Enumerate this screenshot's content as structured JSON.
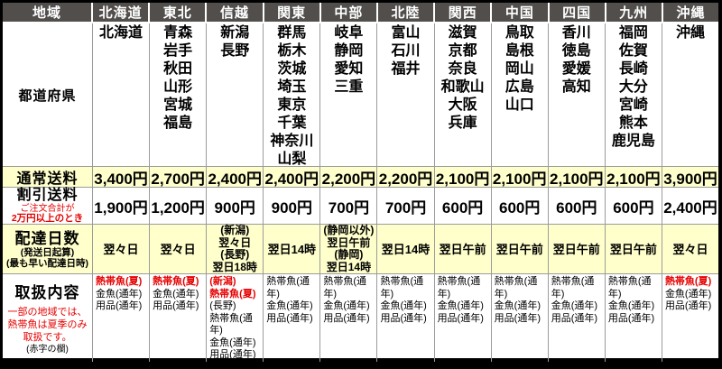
{
  "table": {
    "corner_label": "地域",
    "row_labels": {
      "prefectures": "都道府県",
      "normal_fee_title": "通常送料",
      "discount_fee": {
        "title": "割引送料",
        "note1": "ご注文合計が",
        "note2": "2万円以上のとき"
      },
      "delivery": {
        "title": "配達日数",
        "note1": "(発送日起算)",
        "note2": "(最も早い配達日時)"
      },
      "handling": {
        "title": "取扱内容",
        "red1": "一部の地域では、",
        "red2": "熱帯魚は夏季のみ",
        "red3": "取扱です。",
        "black_note": "(赤字の欄)"
      }
    },
    "columns": [
      {
        "region": "北海道",
        "prefectures": [
          "北海道"
        ],
        "normal_fee": "3,400円",
        "discount_fee": "1,900円",
        "delivery": [
          {
            "text": "翌々日"
          }
        ],
        "handling": [
          {
            "text": "熱帯魚(夏)",
            "red": true
          },
          {
            "text": "金魚(通年)"
          },
          {
            "text": "用品(通年)"
          }
        ]
      },
      {
        "region": "東北",
        "prefectures": [
          "青森",
          "岩手",
          "秋田",
          "山形",
          "宮城",
          "福島"
        ],
        "normal_fee": "2,700円",
        "discount_fee": "1,200円",
        "delivery": [
          {
            "text": "翌々日"
          }
        ],
        "handling": [
          {
            "text": "熱帯魚(夏)",
            "red": true
          },
          {
            "text": "金魚(通年)"
          },
          {
            "text": "用品(通年)"
          }
        ]
      },
      {
        "region": "信越",
        "prefectures": [
          "新潟",
          "長野"
        ],
        "normal_fee": "2,400円",
        "discount_fee": "900円",
        "delivery": [
          {
            "text": "(新潟)"
          },
          {
            "text": "翌々日"
          },
          {
            "text": "(長野)"
          },
          {
            "text": "翌日18時"
          }
        ],
        "handling": [
          {
            "text": "(新潟)",
            "red": true
          },
          {
            "text": "熱帯魚(夏)",
            "red": true
          },
          {
            "text": "(長野)"
          },
          {
            "text": "熱帯魚(通年)"
          },
          {
            "text": "金魚(通年)"
          },
          {
            "text": "用品(通年)"
          }
        ]
      },
      {
        "region": "関東",
        "prefectures": [
          "群馬",
          "栃木",
          "茨城",
          "埼玉",
          "東京",
          "千葉",
          "神奈川",
          "山梨"
        ],
        "normal_fee": "2,400円",
        "discount_fee": "900円",
        "delivery": [
          {
            "text": "翌日14時"
          }
        ],
        "handling": [
          {
            "text": "熱帯魚(通年)"
          },
          {
            "text": "金魚(通年)"
          },
          {
            "text": "用品(通年)"
          }
        ]
      },
      {
        "region": "中部",
        "prefectures": [
          "岐阜",
          "静岡",
          "愛知",
          "三重"
        ],
        "normal_fee": "2,200円",
        "discount_fee": "700円",
        "delivery": [
          {
            "text": "(静岡以外)"
          },
          {
            "text": "翌日午前"
          },
          {
            "text": "(静岡)"
          },
          {
            "text": "翌日14時"
          }
        ],
        "handling": [
          {
            "text": "熱帯魚(通年)"
          },
          {
            "text": "金魚(通年)"
          },
          {
            "text": "用品(通年)"
          }
        ]
      },
      {
        "region": "北陸",
        "prefectures": [
          "富山",
          "石川",
          "福井"
        ],
        "normal_fee": "2,200円",
        "discount_fee": "700円",
        "delivery": [
          {
            "text": "翌日14時"
          }
        ],
        "handling": [
          {
            "text": "熱帯魚(通年)"
          },
          {
            "text": "金魚(通年)"
          },
          {
            "text": "用品(通年)"
          }
        ]
      },
      {
        "region": "関西",
        "prefectures": [
          "滋賀",
          "京都",
          "奈良",
          "和歌山",
          "大阪",
          "兵庫"
        ],
        "normal_fee": "2,100円",
        "discount_fee": "600円",
        "delivery": [
          {
            "text": "翌日午前"
          }
        ],
        "handling": [
          {
            "text": "熱帯魚(通年)"
          },
          {
            "text": "金魚(通年)"
          },
          {
            "text": "用品(通年)"
          }
        ]
      },
      {
        "region": "中国",
        "prefectures": [
          "鳥取",
          "島根",
          "岡山",
          "広島",
          "山口"
        ],
        "normal_fee": "2,100円",
        "discount_fee": "600円",
        "delivery": [
          {
            "text": "翌日午前"
          }
        ],
        "handling": [
          {
            "text": "熱帯魚(通年)"
          },
          {
            "text": "金魚(通年)"
          },
          {
            "text": "用品(通年)"
          }
        ]
      },
      {
        "region": "四国",
        "prefectures": [
          "香川",
          "徳島",
          "愛媛",
          "高知"
        ],
        "normal_fee": "2,100円",
        "discount_fee": "600円",
        "delivery": [
          {
            "text": "翌日午前"
          }
        ],
        "handling": [
          {
            "text": "熱帯魚(通年)"
          },
          {
            "text": "金魚(通年)"
          },
          {
            "text": "用品(通年)"
          }
        ]
      },
      {
        "region": "九州",
        "prefectures": [
          "福岡",
          "佐賀",
          "長崎",
          "大分",
          "宮崎",
          "熊本",
          "鹿児島"
        ],
        "normal_fee": "2,100円",
        "discount_fee": "600円",
        "delivery": [
          {
            "text": "翌日午前"
          }
        ],
        "handling": [
          {
            "text": "熱帯魚(通年)"
          },
          {
            "text": "金魚(通年)"
          },
          {
            "text": "用品(通年)"
          }
        ]
      },
      {
        "region": "沖縄",
        "prefectures": [
          "沖縄"
        ],
        "normal_fee": "3,900円",
        "discount_fee": "2,400円",
        "delivery": [
          {
            "text": "翌々日"
          }
        ],
        "handling": [
          {
            "text": "熱帯魚(夏)",
            "red": true
          },
          {
            "text": "金魚(通年)"
          },
          {
            "text": "用品(通年)"
          }
        ]
      }
    ],
    "colors": {
      "header_bg": "#514e4c",
      "header_text": "#ffffff",
      "highlight_row_bg": "#ffffcc",
      "red_text": "#e60000",
      "grid_line": "#9b9b9b",
      "outer_border": "#000000"
    }
  }
}
